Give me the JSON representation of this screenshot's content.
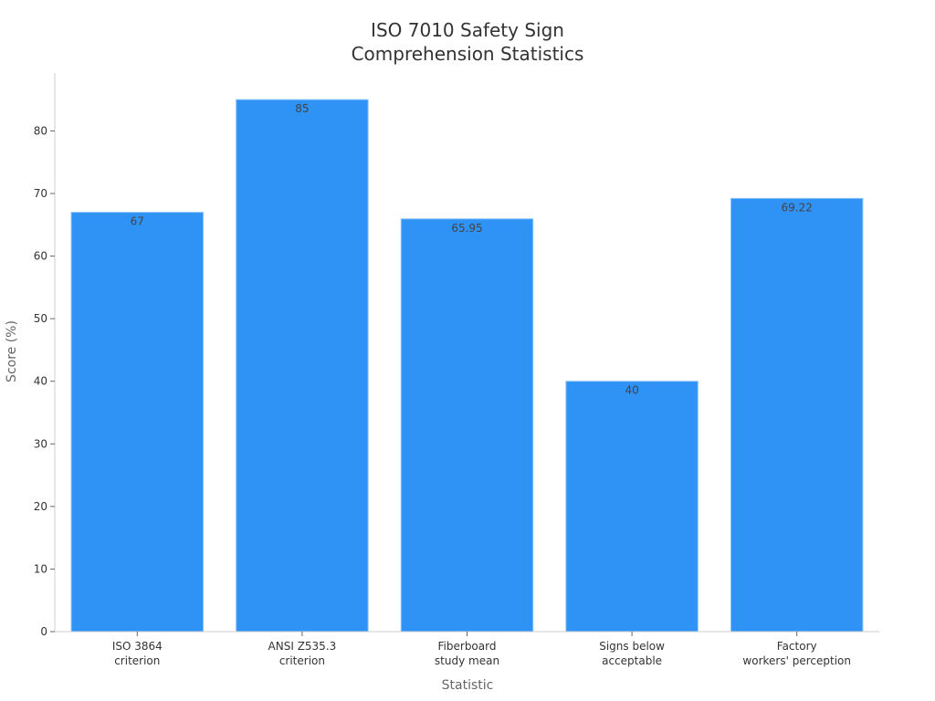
{
  "chart_data": {
    "type": "bar",
    "title": [
      "ISO 7010 Safety Sign",
      "Comprehension Statistics"
    ],
    "xlabel": "Statistic",
    "ylabel": "Score (%)",
    "categories": [
      [
        "ISO 3864",
        "criterion"
      ],
      [
        "ANSI Z535.3",
        "criterion"
      ],
      [
        "Fiberboard",
        "study mean"
      ],
      [
        "Signs below",
        "acceptable"
      ],
      [
        "Factory",
        "workers' perception"
      ]
    ],
    "values": [
      67,
      85,
      65.95,
      40,
      69.22
    ],
    "value_labels": [
      "67",
      "85",
      "65.95",
      "40",
      "69.22"
    ],
    "ylim": [
      0,
      89.25
    ],
    "yticks": [
      0,
      10,
      20,
      30,
      40,
      50,
      60,
      70,
      80
    ],
    "grid": false,
    "legend": "none",
    "bar_color": "#2f92f5"
  }
}
